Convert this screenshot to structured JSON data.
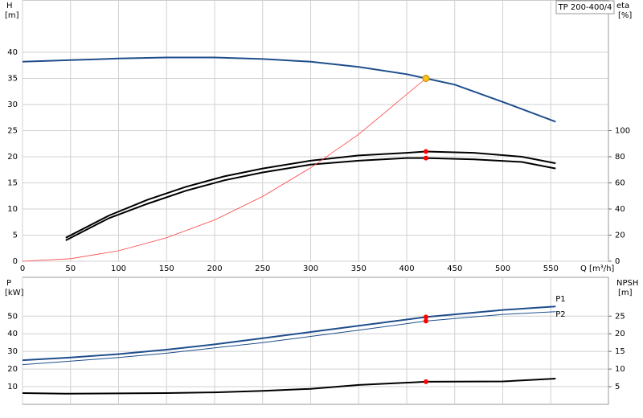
{
  "chart_data": [
    {
      "type": "line",
      "title": "TP 200-400/4",
      "ylabel": "H",
      "yunit": "[m]",
      "y2label": "eta",
      "y2unit": "[%]",
      "xlabel": "Q [m³/h]",
      "xlim": [
        0,
        610
      ],
      "xticks": [
        0,
        50,
        100,
        150,
        200,
        250,
        300,
        350,
        400,
        450,
        500,
        550
      ],
      "ylim": [
        0,
        50
      ],
      "yticks": [
        0,
        5,
        10,
        15,
        20,
        25,
        30,
        35,
        40
      ],
      "y2lim": [
        0,
        200
      ],
      "y2ticks": [
        0,
        20,
        40,
        60,
        80,
        100
      ],
      "grid": true,
      "series": [
        {
          "color": "#1f4e8c",
          "width": 2,
          "x": [
            0,
            50,
            100,
            150,
            200,
            250,
            300,
            350,
            400,
            420,
            450,
            500,
            555
          ],
          "values": [
            38.2,
            38.5,
            38.8,
            39.0,
            39.0,
            38.7,
            38.2,
            37.2,
            35.8,
            35.0,
            33.8,
            30.5,
            26.7
          ]
        },
        {
          "color": "#000000",
          "width": 2,
          "axis": "y2",
          "x": [
            45,
            90,
            130,
            170,
            210,
            250,
            300,
            350,
            400,
            420,
            470,
            520,
            555
          ],
          "values": [
            18,
            35,
            47,
            57,
            65,
            71,
            77,
            81,
            83,
            84,
            83,
            80,
            75
          ]
        },
        {
          "color": "#000000",
          "width": 2,
          "axis": "y2",
          "x": [
            45,
            90,
            130,
            170,
            210,
            250,
            300,
            350,
            400,
            420,
            470,
            520,
            555
          ],
          "values": [
            16,
            33,
            44,
            54,
            62,
            68,
            74,
            77,
            79,
            79,
            78,
            76,
            71
          ]
        },
        {
          "color": "#ff4040",
          "width": 0.8,
          "x": [
            0,
            50,
            100,
            150,
            200,
            250,
            300,
            350,
            420
          ],
          "values": [
            0,
            0.5,
            2.0,
            4.5,
            7.9,
            12.4,
            17.9,
            24.3,
            35.0
          ]
        }
      ],
      "markers": [
        {
          "x": 420,
          "value": 35,
          "color": "#f5c518"
        },
        {
          "x": 420,
          "value": 84,
          "axis": "y2",
          "color": "#ff0000"
        },
        {
          "x": 420,
          "value": 79,
          "axis": "y2",
          "color": "#ff0000"
        }
      ]
    },
    {
      "type": "line",
      "ylabel": "P",
      "yunit": "[kW]",
      "y2label": "NPSH",
      "y2unit": "[m]",
      "xlim": [
        0,
        610
      ],
      "xticks": [
        0,
        50,
        100,
        150,
        200,
        250,
        300,
        350,
        400,
        450,
        500,
        550
      ],
      "ylim": [
        0,
        72
      ],
      "yticks": [
        10,
        20,
        30,
        40,
        50
      ],
      "y2lim": [
        0,
        36
      ],
      "y2ticks": [
        5,
        10,
        15,
        20,
        25
      ],
      "grid": true,
      "series": [
        {
          "name": "P1",
          "color": "#1f4e8c",
          "width": 2,
          "x": [
            0,
            50,
            100,
            150,
            200,
            250,
            300,
            350,
            420,
            500,
            555
          ],
          "values": [
            25,
            26.5,
            28.5,
            31,
            34,
            37.5,
            41,
            44.5,
            49.5,
            53.5,
            55.5
          ]
        },
        {
          "name": "P2",
          "color": "#1f4e8c",
          "width": 1,
          "x": [
            0,
            50,
            100,
            150,
            200,
            250,
            300,
            350,
            420,
            500,
            555
          ],
          "values": [
            22.5,
            24.5,
            26.5,
            29,
            32,
            35,
            38.5,
            42,
            47.2,
            51,
            52.5
          ]
        },
        {
          "color": "#000000",
          "width": 2,
          "axis": "y2",
          "x": [
            0,
            45,
            100,
            150,
            200,
            250,
            300,
            350,
            420,
            500,
            555
          ],
          "values": [
            3.2,
            3.0,
            3.1,
            3.2,
            3.4,
            3.8,
            4.4,
            5.5,
            6.4,
            6.5,
            7.3
          ]
        }
      ],
      "markers": [
        {
          "x": 420,
          "value": 49.5,
          "color": "#ff0000"
        },
        {
          "x": 420,
          "value": 47.2,
          "color": "#ff0000"
        },
        {
          "x": 420,
          "value": 6.4,
          "axis": "y2",
          "color": "#ff0000"
        }
      ]
    }
  ]
}
